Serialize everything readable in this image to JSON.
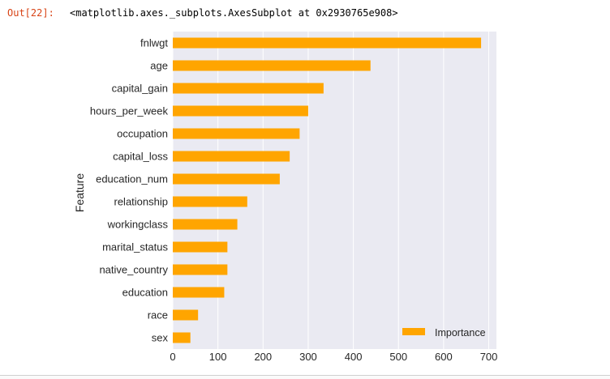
{
  "output": {
    "prompt": "Out[22]:",
    "text": "<matplotlib.axes._subplots.AxesSubplot at 0x2930765e908>",
    "prompt_color": "#d84315"
  },
  "colors": {
    "bar": "#ffa500",
    "plot_bg": "#eaeaf2",
    "grid": "#ffffff",
    "text": "#262626"
  },
  "chart_data": {
    "type": "bar",
    "orientation": "horizontal",
    "categories": [
      "fnlwgt",
      "age",
      "capital_gain",
      "hours_per_week",
      "occupation",
      "capital_loss",
      "education_num",
      "relationship",
      "workingclass",
      "marital_status",
      "native_country",
      "education",
      "race",
      "sex"
    ],
    "series": [
      {
        "name": "Importance",
        "values": [
          683,
          438,
          334,
          300,
          281,
          259,
          237,
          165,
          143,
          121,
          121,
          114,
          56,
          39
        ]
      }
    ],
    "xlabel": "",
    "ylabel": "Feature",
    "xticks": [
      0,
      100,
      200,
      300,
      400,
      500,
      600,
      700
    ],
    "xlim": [
      0,
      717
    ],
    "grid": true,
    "legend_position": "lower-right"
  }
}
